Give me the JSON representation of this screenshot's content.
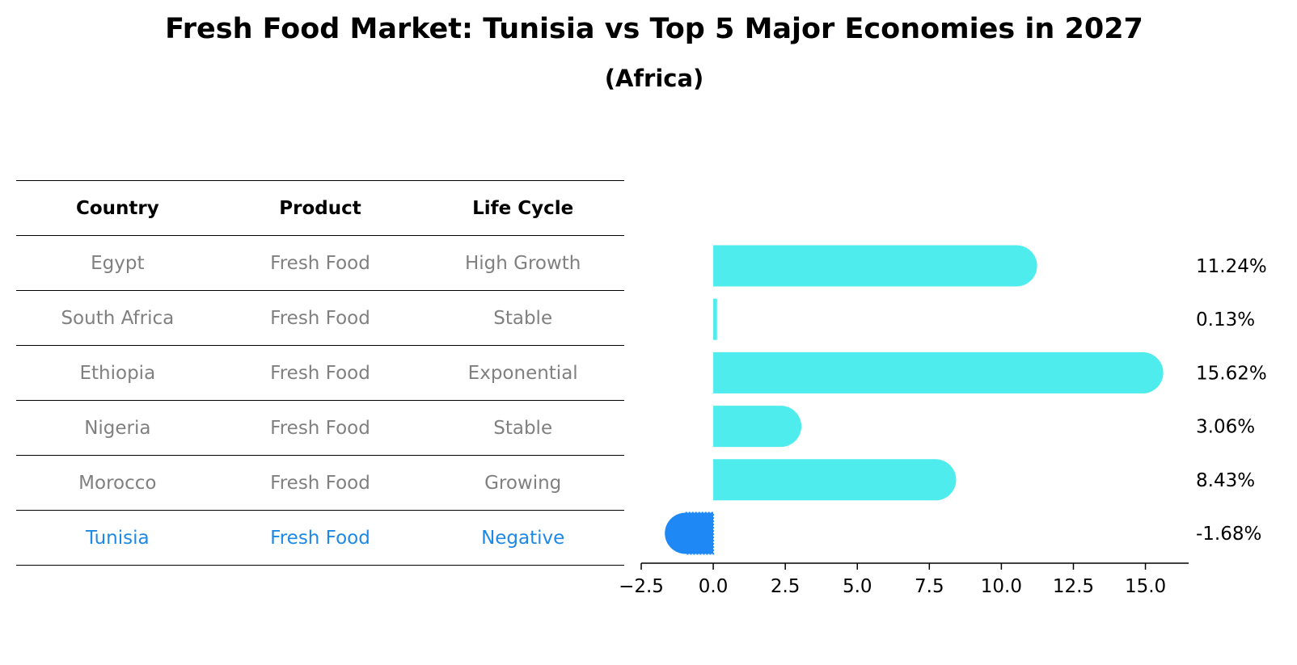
{
  "title": "Fresh Food Market: Tunisia vs Top 5 Major Economies in 2027",
  "subtitle": "(Africa)",
  "table": {
    "headers": [
      "Country",
      "Product",
      "Life Cycle"
    ],
    "rows": [
      [
        "Egypt",
        "Fresh Food",
        "High Growth"
      ],
      [
        "South Africa",
        "Fresh Food",
        "Stable"
      ],
      [
        "Ethiopia",
        "Fresh Food",
        "Exponential"
      ],
      [
        "Nigeria",
        "Fresh Food",
        "Stable"
      ],
      [
        "Morocco",
        "Fresh Food",
        "Growing"
      ],
      [
        "Tunisia",
        "Fresh Food",
        "Negative"
      ]
    ],
    "highlight_color": "#1e88e5",
    "text_color": "#808080"
  },
  "chart_data": {
    "type": "bar",
    "orientation": "horizontal",
    "categories": [
      "Egypt",
      "South Africa",
      "Ethiopia",
      "Nigeria",
      "Morocco",
      "Tunisia"
    ],
    "values": [
      11.24,
      0.13,
      15.62,
      3.06,
      8.43,
      -1.68
    ],
    "value_labels": [
      "11.24%",
      "0.13%",
      "15.62%",
      "3.06%",
      "8.43%",
      "-1.68%"
    ],
    "xlim": [
      -2.5,
      16.5
    ],
    "x_ticks": [
      -2.5,
      0.0,
      2.5,
      5.0,
      7.5,
      10.0,
      12.5,
      15.0
    ],
    "x_tick_labels": [
      "−2.5",
      "0.0",
      "2.5",
      "5.0",
      "7.5",
      "10.0",
      "12.5",
      "15.0"
    ],
    "positive_color": "#4eecec",
    "negative_color": "#1e88f5",
    "grid": false
  }
}
